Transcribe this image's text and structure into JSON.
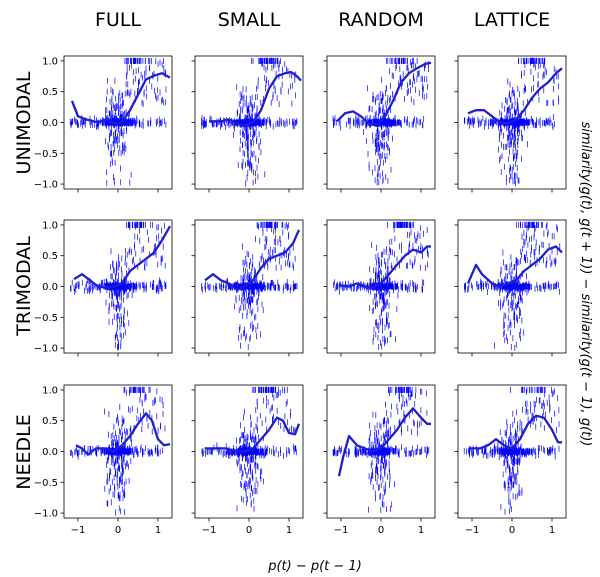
{
  "figure": {
    "xlabel": "p(t) − p(t − 1)",
    "ylabel": "similarity(g(t), g(t + 1)) − similarity(g(t − 1), g(t))"
  },
  "columns": [
    "FULL",
    "SMALL",
    "RANDOM",
    "LATTICE"
  ],
  "rows": [
    "UNIMODAL",
    "TRIMODAL",
    "NEEDLE"
  ],
  "colors": {
    "scatter": "#0000ff",
    "line": "#1f1fcf"
  },
  "chart_data": {
    "type": "scatter",
    "xlim": [
      -1.35,
      1.35
    ],
    "ylim": [
      -1.08,
      1.08
    ],
    "x_ticks": [
      -1,
      0,
      1
    ],
    "y_ticks": [
      -1.0,
      -0.5,
      0.0,
      0.5,
      1.0
    ],
    "x_tick_labels": [
      "−1",
      "0",
      "1"
    ],
    "y_tick_labels": [
      "−1.0",
      "−0.5",
      "0.0",
      "0.5",
      "1.0"
    ],
    "marker": "vertical-dash",
    "grid": false,
    "panels": [
      {
        "row": "UNIMODAL",
        "col": "FULL",
        "trend": [
          [
            -1.15,
            0.35
          ],
          [
            -1.0,
            0.1
          ],
          [
            -0.8,
            0.05
          ],
          [
            -0.5,
            0.0
          ],
          [
            -0.3,
            0.05
          ],
          [
            -0.1,
            -0.02
          ],
          [
            0.1,
            0.0
          ],
          [
            0.3,
            0.2
          ],
          [
            0.5,
            0.45
          ],
          [
            0.7,
            0.7
          ],
          [
            0.9,
            0.76
          ],
          [
            1.1,
            0.8
          ],
          [
            1.3,
            0.73
          ]
        ]
      },
      {
        "row": "UNIMODAL",
        "col": "SMALL",
        "trend": [
          [
            -1.0,
            0.02
          ],
          [
            -0.7,
            0.02
          ],
          [
            -0.5,
            0.05
          ],
          [
            -0.3,
            -0.02
          ],
          [
            -0.1,
            -0.05
          ],
          [
            0.1,
            0.0
          ],
          [
            0.3,
            0.2
          ],
          [
            0.5,
            0.55
          ],
          [
            0.7,
            0.75
          ],
          [
            0.9,
            0.8
          ],
          [
            1.05,
            0.82
          ],
          [
            1.2,
            0.75
          ],
          [
            1.3,
            0.68
          ]
        ]
      },
      {
        "row": "UNIMODAL",
        "col": "RANDOM",
        "trend": [
          [
            -1.1,
            0.02
          ],
          [
            -0.9,
            0.15
          ],
          [
            -0.7,
            0.18
          ],
          [
            -0.5,
            0.1
          ],
          [
            -0.3,
            -0.02
          ],
          [
            -0.1,
            -0.05
          ],
          [
            0.1,
            0.1
          ],
          [
            0.3,
            0.35
          ],
          [
            0.5,
            0.65
          ],
          [
            0.7,
            0.8
          ],
          [
            0.9,
            0.88
          ],
          [
            1.1,
            0.95
          ],
          [
            1.25,
            0.97
          ]
        ]
      },
      {
        "row": "UNIMODAL",
        "col": "LATTICE",
        "trend": [
          [
            -1.1,
            0.15
          ],
          [
            -0.9,
            0.2
          ],
          [
            -0.7,
            0.2
          ],
          [
            -0.5,
            0.1
          ],
          [
            -0.3,
            0.0
          ],
          [
            -0.1,
            -0.02
          ],
          [
            0.1,
            0.05
          ],
          [
            0.3,
            0.2
          ],
          [
            0.5,
            0.4
          ],
          [
            0.7,
            0.55
          ],
          [
            0.9,
            0.65
          ],
          [
            1.1,
            0.8
          ],
          [
            1.25,
            0.88
          ]
        ]
      },
      {
        "row": "TRIMODAL",
        "col": "FULL",
        "trend": [
          [
            -1.1,
            0.12
          ],
          [
            -0.9,
            0.2
          ],
          [
            -0.7,
            0.1
          ],
          [
            -0.5,
            0.0
          ],
          [
            -0.3,
            -0.02
          ],
          [
            -0.1,
            0.0
          ],
          [
            0.1,
            0.05
          ],
          [
            0.3,
            0.25
          ],
          [
            0.5,
            0.35
          ],
          [
            0.7,
            0.45
          ],
          [
            0.9,
            0.55
          ],
          [
            1.1,
            0.75
          ],
          [
            1.3,
            0.98
          ]
        ]
      },
      {
        "row": "TRIMODAL",
        "col": "SMALL",
        "trend": [
          [
            -1.1,
            0.1
          ],
          [
            -0.9,
            0.2
          ],
          [
            -0.7,
            0.1
          ],
          [
            -0.5,
            0.05
          ],
          [
            -0.3,
            -0.05
          ],
          [
            -0.1,
            0.0
          ],
          [
            0.1,
            0.1
          ],
          [
            0.3,
            0.3
          ],
          [
            0.5,
            0.45
          ],
          [
            0.7,
            0.5
          ],
          [
            0.9,
            0.55
          ],
          [
            1.1,
            0.7
          ],
          [
            1.25,
            0.92
          ]
        ]
      },
      {
        "row": "TRIMODAL",
        "col": "RANDOM",
        "trend": [
          [
            -1.05,
            0.02
          ],
          [
            -0.8,
            0.0
          ],
          [
            -0.6,
            0.05
          ],
          [
            -0.4,
            0.0
          ],
          [
            -0.2,
            -0.02
          ],
          [
            0.0,
            0.05
          ],
          [
            0.2,
            0.2
          ],
          [
            0.4,
            0.35
          ],
          [
            0.6,
            0.5
          ],
          [
            0.8,
            0.6
          ],
          [
            1.0,
            0.55
          ],
          [
            1.15,
            0.65
          ],
          [
            1.25,
            0.65
          ]
        ]
      },
      {
        "row": "TRIMODAL",
        "col": "LATTICE",
        "trend": [
          [
            -1.1,
            0.05
          ],
          [
            -0.9,
            0.35
          ],
          [
            -0.75,
            0.2
          ],
          [
            -0.5,
            0.05
          ],
          [
            -0.3,
            0.0
          ],
          [
            -0.1,
            0.05
          ],
          [
            0.1,
            0.1
          ],
          [
            0.3,
            0.25
          ],
          [
            0.5,
            0.35
          ],
          [
            0.7,
            0.45
          ],
          [
            0.9,
            0.6
          ],
          [
            1.1,
            0.65
          ],
          [
            1.25,
            0.55
          ]
        ]
      },
      {
        "row": "NEEDLE",
        "col": "FULL",
        "trend": [
          [
            -1.05,
            0.1
          ],
          [
            -0.9,
            0.05
          ],
          [
            -0.75,
            -0.05
          ],
          [
            -0.55,
            0.05
          ],
          [
            -0.3,
            0.05
          ],
          [
            -0.1,
            0.0
          ],
          [
            0.1,
            0.1
          ],
          [
            0.3,
            0.25
          ],
          [
            0.5,
            0.45
          ],
          [
            0.7,
            0.62
          ],
          [
            0.85,
            0.5
          ],
          [
            1.0,
            0.2
          ],
          [
            1.15,
            0.1
          ],
          [
            1.3,
            0.12
          ]
        ]
      },
      {
        "row": "NEEDLE",
        "col": "SMALL",
        "trend": [
          [
            -1.1,
            0.05
          ],
          [
            -0.9,
            0.05
          ],
          [
            -0.6,
            0.05
          ],
          [
            -0.3,
            0.0
          ],
          [
            -0.1,
            0.0
          ],
          [
            0.1,
            0.05
          ],
          [
            0.3,
            0.2
          ],
          [
            0.5,
            0.35
          ],
          [
            0.7,
            0.55
          ],
          [
            0.85,
            0.5
          ],
          [
            1.0,
            0.3
          ],
          [
            1.15,
            0.28
          ],
          [
            1.25,
            0.45
          ]
        ]
      },
      {
        "row": "NEEDLE",
        "col": "RANDOM",
        "trend": [
          [
            -1.05,
            -0.4
          ],
          [
            -0.95,
            -0.1
          ],
          [
            -0.8,
            0.25
          ],
          [
            -0.6,
            0.1
          ],
          [
            -0.4,
            0.05
          ],
          [
            -0.2,
            0.0
          ],
          [
            0.0,
            0.05
          ],
          [
            0.2,
            0.2
          ],
          [
            0.4,
            0.35
          ],
          [
            0.6,
            0.55
          ],
          [
            0.8,
            0.7
          ],
          [
            1.0,
            0.55
          ],
          [
            1.15,
            0.45
          ],
          [
            1.25,
            0.45
          ]
        ]
      },
      {
        "row": "NEEDLE",
        "col": "LATTICE",
        "trend": [
          [
            -1.05,
            0.05
          ],
          [
            -0.8,
            0.05
          ],
          [
            -0.6,
            0.1
          ],
          [
            -0.4,
            0.2
          ],
          [
            -0.2,
            0.1
          ],
          [
            0.0,
            0.05
          ],
          [
            0.2,
            0.2
          ],
          [
            0.4,
            0.45
          ],
          [
            0.6,
            0.58
          ],
          [
            0.8,
            0.55
          ],
          [
            1.0,
            0.35
          ],
          [
            1.15,
            0.15
          ],
          [
            1.25,
            0.15
          ]
        ]
      }
    ]
  }
}
